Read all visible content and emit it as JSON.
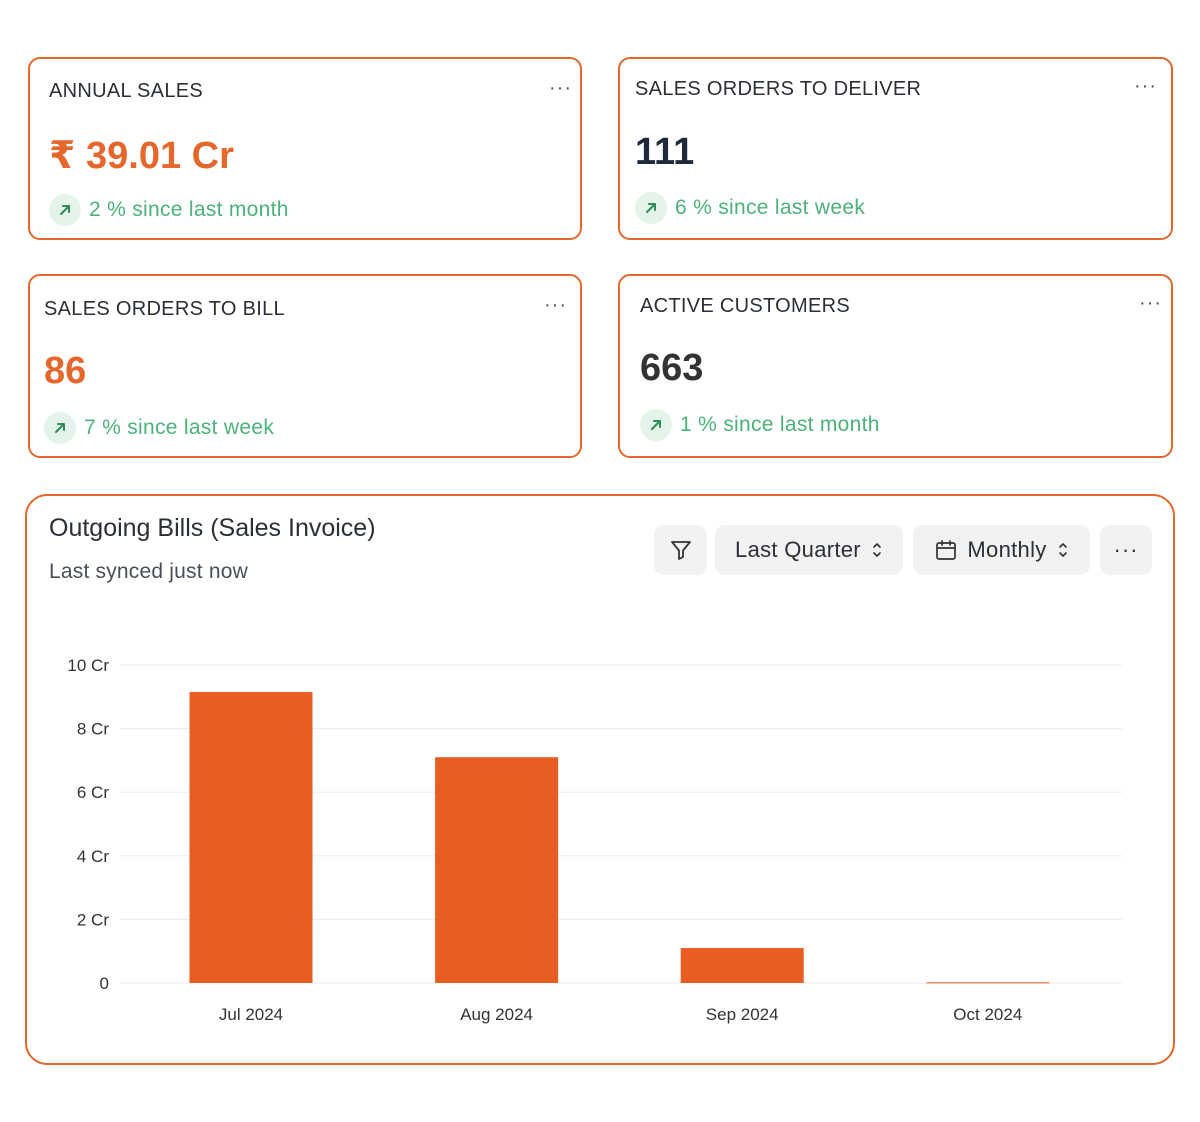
{
  "cards": [
    {
      "title": "ANNUAL SALES",
      "value": "₹ 39.01 Cr",
      "trend": "2 % since last month",
      "value_color": "#e5672b"
    },
    {
      "title": "SALES ORDERS TO DELIVER",
      "value": "111",
      "trend": "6 % since last week",
      "value_color": "#1e2a3b"
    },
    {
      "title": "SALES ORDERS TO BILL",
      "value": "86",
      "trend": "7 % since last week",
      "value_color": "#e5672b"
    },
    {
      "title": "ACTIVE CUSTOMERS",
      "value": "663",
      "trend": "1 % since last month",
      "value_color": "#333333"
    }
  ],
  "chart_card": {
    "title": "Outgoing Bills (Sales Invoice)",
    "subtitle": "Last synced just now",
    "filter_icon": "filter-icon",
    "period_select": "Last Quarter",
    "interval_select": "Monthly",
    "interval_icon": "calendar-icon",
    "menu_icon": "more-horizontal-icon"
  },
  "chart_data": {
    "type": "bar",
    "categories": [
      "Jul 2024",
      "Aug 2024",
      "Sep 2024",
      "Oct 2024"
    ],
    "values": [
      9.15,
      7.1,
      1.1,
      0.02
    ],
    "ylim": [
      0,
      10
    ],
    "yticks": [
      0,
      2,
      4,
      6,
      8,
      10
    ],
    "ytick_labels": [
      "0",
      "2 Cr",
      "4 Cr",
      "6 Cr",
      "8 Cr",
      "10 Cr"
    ],
    "bar_color": "#e85d22",
    "grid": true,
    "xlabel": "",
    "ylabel": ""
  },
  "colors": {
    "accent": "#e5672b",
    "trend_green": "#4bb27a"
  }
}
